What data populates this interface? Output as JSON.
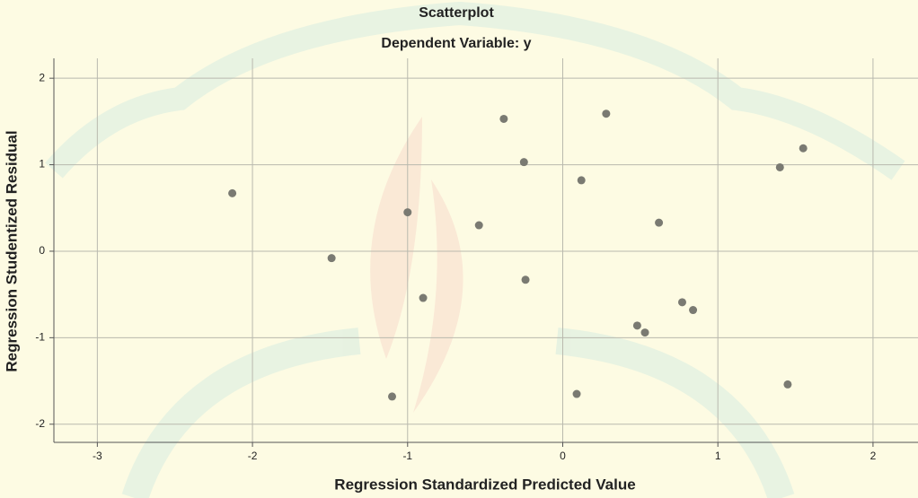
{
  "chart_data": {
    "type": "scatter",
    "title": "Scatterplot",
    "subtitle": "Dependent Variable: y",
    "x_label": "Regression Standardized Predicted Value",
    "y_label": "Regression Studentized Residual",
    "x": [
      -2.13,
      -1.49,
      -1.0,
      -0.9,
      -1.1,
      -0.54,
      -0.38,
      -0.25,
      -0.24,
      0.09,
      0.12,
      0.28,
      0.48,
      0.53,
      0.62,
      0.77,
      0.84,
      1.4,
      1.55,
      1.45
    ],
    "values": [
      0.67,
      -0.08,
      0.45,
      -0.54,
      -1.68,
      0.3,
      1.53,
      1.03,
      -0.33,
      -1.65,
      0.82,
      1.59,
      -0.86,
      -0.94,
      0.33,
      -0.59,
      -0.68,
      0.97,
      1.19,
      -1.54
    ],
    "color": "#7a7a72",
    "xlim": [
      -3.28,
      2.29
    ],
    "ylim": [
      -2.21,
      2.23
    ],
    "xticks": [
      -3,
      -2,
      -1,
      0,
      1,
      2
    ],
    "yticks": [
      -2,
      -1,
      0,
      1,
      2
    ],
    "grid": true
  }
}
